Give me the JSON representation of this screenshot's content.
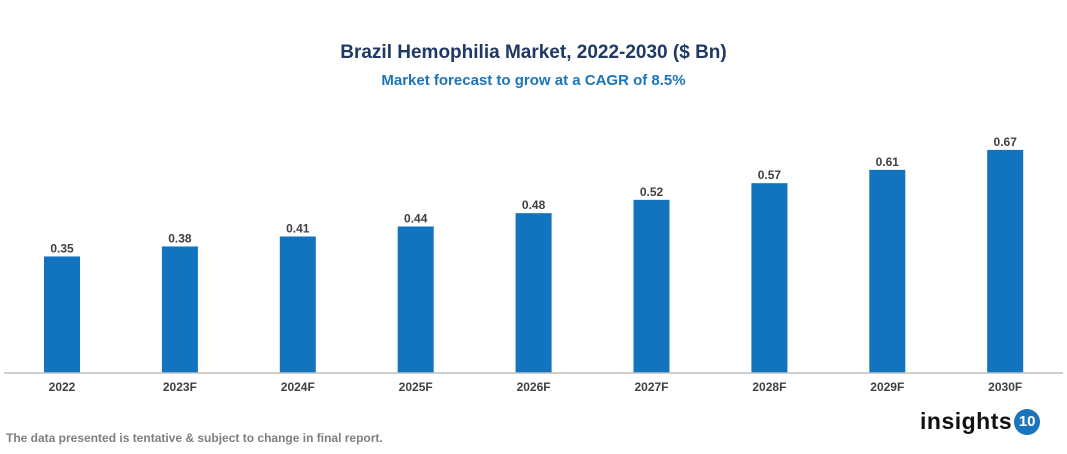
{
  "chart_data": {
    "type": "bar",
    "title": "Brazil Hemophilia Market, 2022-2030 ($ Bn)",
    "subtitle": "Market forecast to grow at a CAGR of 8.5%",
    "categories": [
      "2022",
      "2023F",
      "2024F",
      "2025F",
      "2026F",
      "2027F",
      "2028F",
      "2029F",
      "2030F"
    ],
    "values": [
      0.35,
      0.38,
      0.41,
      0.44,
      0.48,
      0.52,
      0.57,
      0.61,
      0.67
    ],
    "xlabel": "",
    "ylabel": "",
    "ylim": [
      0,
      0.67
    ],
    "grid": false,
    "bar_color": "#1273be",
    "data_labels": true
  },
  "footnote": "The data presented is tentative & subject to change in final report.",
  "logo": {
    "text": "insights",
    "badge": "10"
  }
}
